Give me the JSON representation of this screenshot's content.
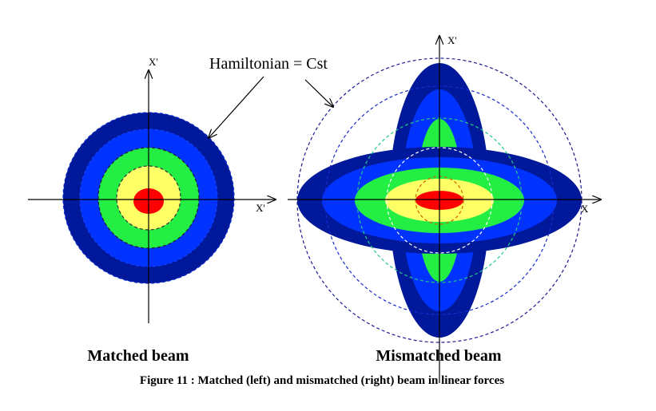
{
  "hamiltonian_label": "Hamiltonian = Cst",
  "left": {
    "y_axis_label": "X'",
    "x_axis_label": "X'",
    "title": "Matched beam"
  },
  "right": {
    "y_axis_label": "X'",
    "x_axis_label": "X",
    "title": "Mismatched beam"
  },
  "caption": "Figure 11 : Matched (left) and mismatched (right) beam in linear forces"
}
